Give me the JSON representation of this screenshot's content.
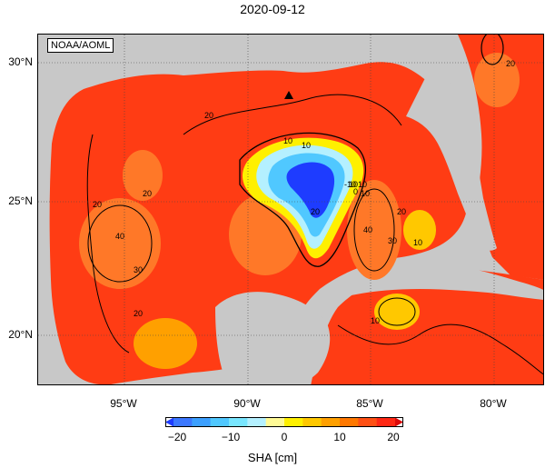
{
  "title": "2020-09-12",
  "credit": "NOAA/AOML",
  "lat_labels": [
    "30°N",
    "25°N",
    "20°N"
  ],
  "lon_labels": [
    "95°W",
    "90°W",
    "85°W",
    "80°W"
  ],
  "colorbar": {
    "title": "SHA [cm]",
    "tick_labels": [
      "−20",
      "−10",
      "0",
      "10",
      "20"
    ],
    "colors": [
      "#1e3cff",
      "#3c78ff",
      "#3ca0ff",
      "#50c8ff",
      "#78e6ff",
      "#b4f0ff",
      "#fffa96",
      "#fff000",
      "#ffc800",
      "#ffa000",
      "#ff7800",
      "#ff5014",
      "#ff2814",
      "#dc0a0a"
    ]
  },
  "contour_labels": [
    "20",
    "10",
    "10",
    "20",
    "40",
    "30",
    "20",
    "20",
    "20",
    "20",
    "30",
    "10",
    "40",
    "10",
    "10",
    "20",
    "10",
    "0",
    "-10",
    "10"
  ],
  "colors": {
    "land": "#c8c8c8",
    "ocean_high": "#ff3c14",
    "ocean_mid": "#ff7828"
  },
  "marker": "triangle-marker"
}
